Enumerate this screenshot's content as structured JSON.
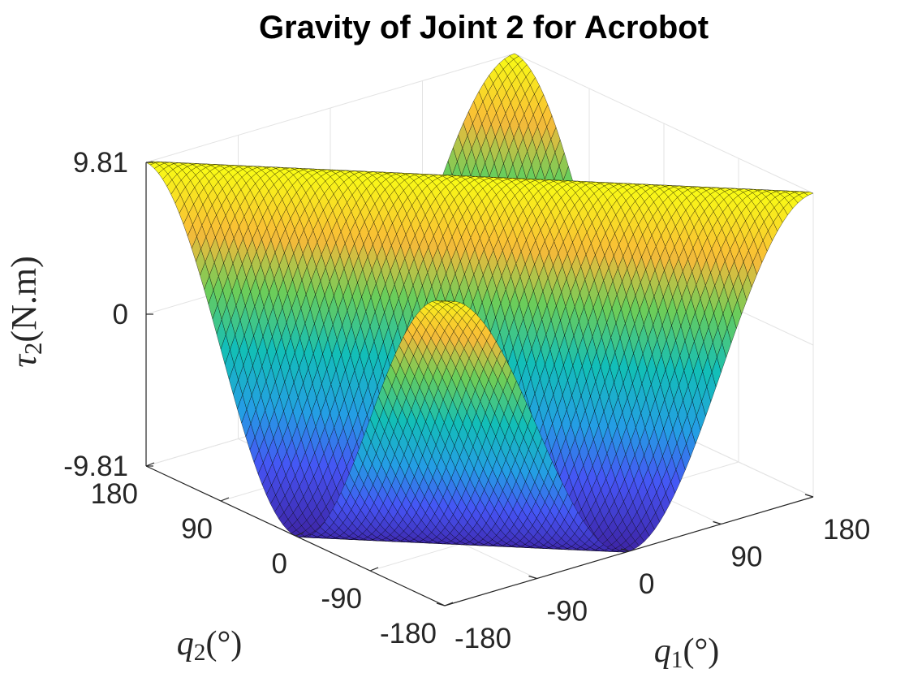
{
  "chart_data": {
    "type": "surface",
    "title": "Gravity of Joint 2 for Acrobot",
    "xlabel": "q_1(°)",
    "ylabel": "q_2(°)",
    "zlabel": "τ_2(N.m)",
    "xlim": [
      -180,
      180
    ],
    "ylim": [
      -180,
      180
    ],
    "zlim": [
      -9.81,
      9.81
    ],
    "xticks": [
      "-180",
      "-90",
      "0",
      "90",
      "180"
    ],
    "yticks": [
      "-180",
      "-90",
      "0",
      "90",
      "180"
    ],
    "zticks": [
      "-9.81",
      "0",
      "9.81"
    ],
    "grid": true,
    "colormap": "parula",
    "colors": {
      "low": "#3e26a8",
      "mid": "#1fb3a9",
      "high": "#f9fb15",
      "edge": "#000000"
    },
    "surface": {
      "x_range": [
        -180,
        180
      ],
      "y_range": [
        -180,
        180
      ],
      "grid_points": 73,
      "function": "tau2 = 9.81 * cos(q1 + q2)"
    }
  }
}
